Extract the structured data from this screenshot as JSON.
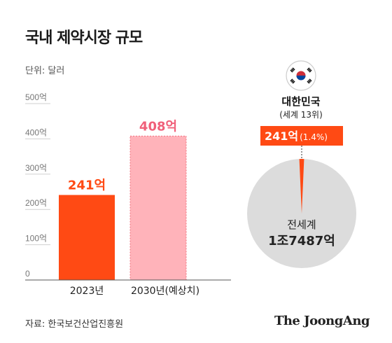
{
  "title": "국내 제약시장 규모",
  "unit_label": "단위: 달러",
  "source": "자료: 한국보건산업진흥원",
  "brand": "The JoongAng",
  "colors": {
    "bar_2023": "#ff4a14",
    "bar_2030": "#ffb3ba",
    "label_2023": "#ff4a14",
    "label_2030": "#f0607a",
    "pie_gray": "#dcdcdc",
    "korea_slice": "#ff4a14",
    "badge": "#ff4a14"
  },
  "chart_data": [
    {
      "type": "bar",
      "categories": [
        "2023년",
        "2030년(예상치)"
      ],
      "values": [
        241,
        408
      ],
      "value_labels": [
        "241억",
        "408억"
      ],
      "ylim": [
        0,
        500
      ],
      "yticks": [
        0,
        100,
        200,
        300,
        400,
        500
      ],
      "ytick_labels": [
        "0",
        "100억",
        "200억",
        "300억",
        "400억",
        "500억"
      ],
      "xlabel": "",
      "ylabel": "",
      "grid": false
    },
    {
      "type": "pie",
      "slices": [
        {
          "label": "대한민국",
          "value": 241,
          "percent": 1.4
        },
        {
          "label": "전세계",
          "value": 17487
        }
      ],
      "korea_label": "대한민국",
      "korea_rank": "(세계 13위)",
      "korea_value": "241억",
      "korea_share": "(1.4%)",
      "world_label": "전세계",
      "world_value": "1조7487억",
      "flag_icon": "korea-flag-icon"
    }
  ]
}
